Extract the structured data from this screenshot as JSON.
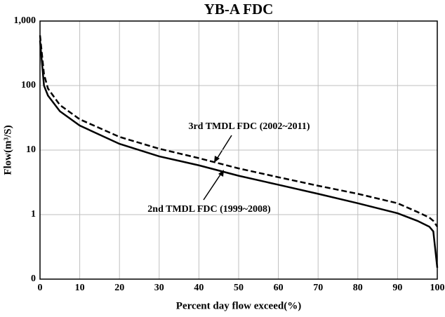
{
  "chart_data": {
    "type": "line",
    "title": "YB-A  FDC",
    "x_label": "Percent day flow exceed(%)",
    "y_label": "Flow(m³/S)",
    "xlim": [
      0,
      100
    ],
    "xticks": [
      0,
      10,
      20,
      30,
      40,
      50,
      60,
      70,
      80,
      90,
      100
    ],
    "ylim": [
      0.1,
      1000
    ],
    "log_y": true,
    "grid": true,
    "yticks": [
      {
        "value": 0.1,
        "label": "0"
      },
      1,
      10,
      100,
      {
        "value": 1000,
        "label": "1,000"
      }
    ],
    "x": [
      0,
      1,
      2,
      5,
      10,
      20,
      30,
      40,
      50,
      60,
      70,
      80,
      90,
      95,
      98,
      99,
      100
    ],
    "series": [
      {
        "name": "3rd TMDL FDC (2002~2011)",
        "color": "#000000",
        "dash": true,
        "values": [
          600,
          150,
          90,
          50,
          30,
          16,
          10.5,
          7.5,
          5.2,
          3.8,
          2.8,
          2.1,
          1.5,
          1.1,
          0.9,
          0.8,
          0.65
        ]
      },
      {
        "name": "2nd TMDL  FDC (1999~2008)",
        "color": "#000000",
        "dash": false,
        "values": [
          500,
          100,
          70,
          40,
          24,
          12.5,
          8,
          5.8,
          4,
          2.9,
          2.1,
          1.5,
          1.05,
          0.8,
          0.65,
          0.55,
          0.15
        ]
      }
    ]
  }
}
